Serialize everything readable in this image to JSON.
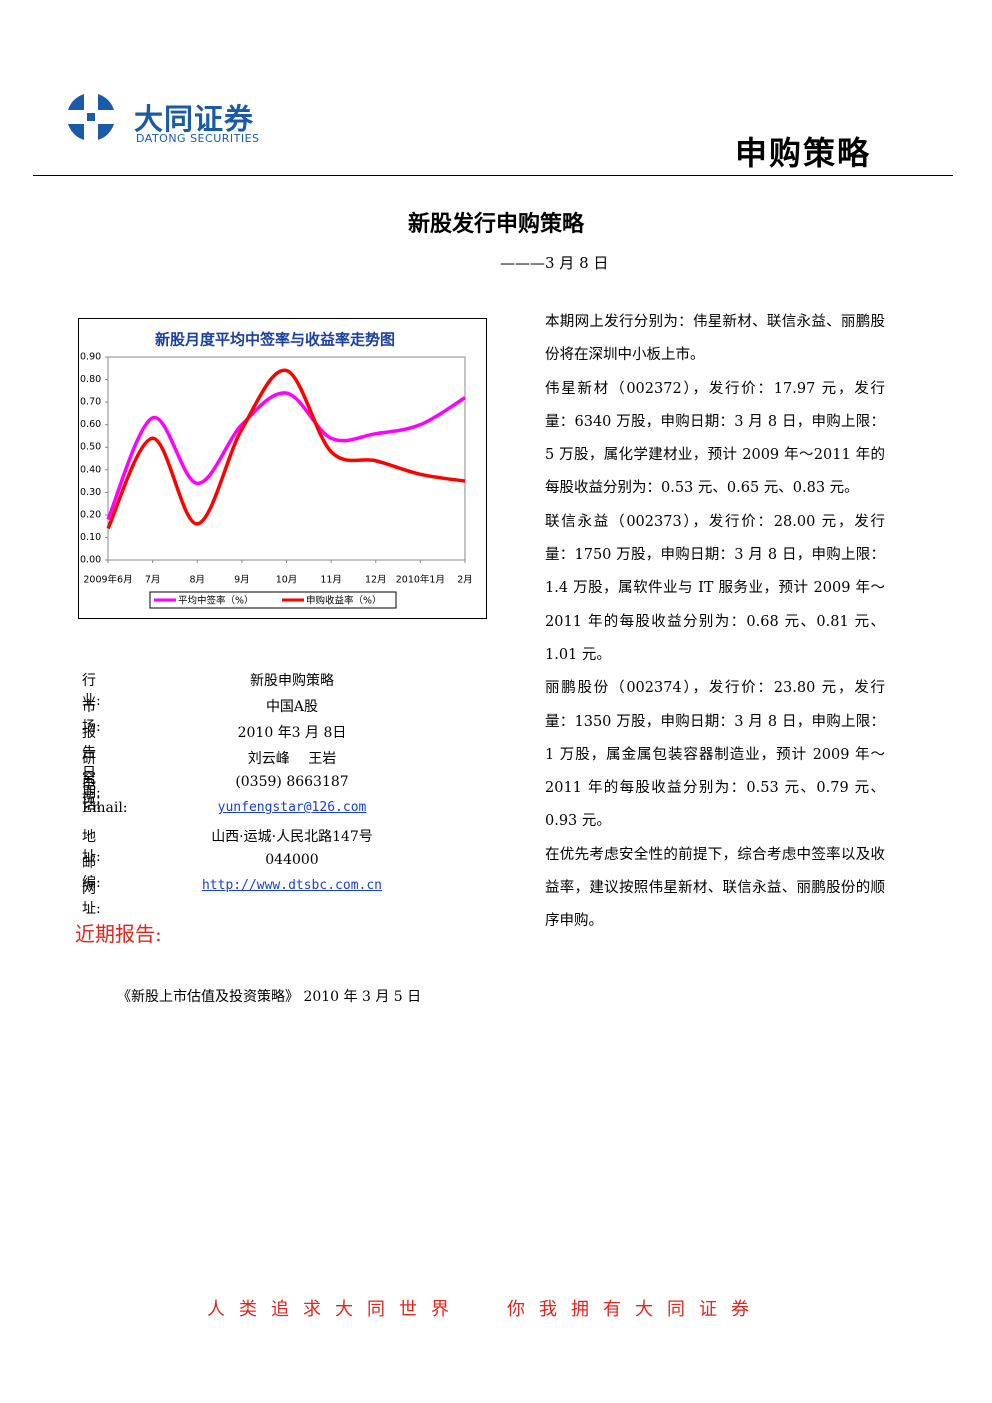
{
  "header": {
    "brand": "大同证券",
    "brand_en": "DATONG SECURITIES",
    "section": "申购策略"
  },
  "title": "新股发行申购策略",
  "date": "———3 月 8 日",
  "chart_data": {
    "type": "line",
    "title": "新股月度平均中签率与收益率走势图",
    "categories": [
      "2009年6月",
      "7月",
      "8月",
      "9月",
      "10月",
      "11月",
      "12月",
      "2010年1月",
      "2月"
    ],
    "series": [
      {
        "name": "平均中签率（%）",
        "color": "#ff00ff",
        "values": [
          0.18,
          0.63,
          0.34,
          0.6,
          0.74,
          0.54,
          0.56,
          0.6,
          0.72
        ]
      },
      {
        "name": "申购收益率（%）",
        "color": "#ff0000",
        "values": [
          0.14,
          0.54,
          0.16,
          0.58,
          0.84,
          0.48,
          0.44,
          0.38,
          0.35
        ]
      }
    ],
    "ylim": [
      0,
      0.9
    ],
    "yticks": [
      {
        "value": 0,
        "label": "0.00"
      },
      {
        "value": 0.1,
        "label": "0.10"
      },
      {
        "value": 0.2,
        "label": "0.20"
      },
      {
        "value": 0.3,
        "label": "0.30"
      },
      {
        "value": 0.4,
        "label": "0.40"
      },
      {
        "value": 0.5,
        "label": "0.50"
      },
      {
        "value": 0.6,
        "label": "0.60"
      },
      {
        "value": 0.7,
        "label": "0.70"
      },
      {
        "value": 0.8,
        "label": "0.80"
      },
      {
        "value": 0.9,
        "label": "0.90"
      }
    ],
    "grid": false,
    "legend": "bottom"
  },
  "info": [
    [
      "行业:",
      "新股申购策略"
    ],
    [
      "市场:",
      "中国A股"
    ],
    [
      "报告日期:",
      "2010 年3 月 8日"
    ],
    [
      "研究员:",
      "刘云峰　 王岩"
    ],
    [
      "电话:",
      "(0359) 8663187"
    ],
    [
      "Email:",
      "yunfengstar@126.com"
    ],
    [
      "地 址:",
      "山西·运城·人民北路147号"
    ],
    [
      "邮编:",
      "044000"
    ],
    [
      "网址:",
      "http://www.dtsbc.com.cn"
    ]
  ],
  "recent_reports": {
    "heading": "近期报告:",
    "items": [
      "《新股上市估值及投资策略》 2010 年 3 月 5 日"
    ]
  },
  "body": [
    "本期网上发行分别为：伟星新材、联信永益、丽鹏股份将在深圳中小板上市。",
    "伟星新材（002372），发行价：17.97 元，发行量：6340 万股，申购日期：3 月 8 日，申购上限：5 万股，属化学建材业，预计 2009 年～2011 年的每股收益分别为：0.53 元、0.65 元、0.83 元。",
    "联信永益（002373），发行价：28.00 元，发行量：1750 万股，申购日期：3 月 8 日，申购上限：1.4 万股，属软件业与 IT 服务业，预计 2009 年～2011 年的每股收益分别为：0.68 元、0.81 元、1.01 元。",
    "丽鹏股份（002374），发行价：23.80 元，发行量：1350 万股，申购日期：3 月 8 日，申购上限：1 万股，属金属包装容器制造业，预计 2009 年～2011 年的每股收益分别为：0.53 元、0.79 元、0.93 元。",
    "在优先考虑安全性的前提下，综合考虑中签率以及收益率，建议按照伟星新材、联信永益、丽鹏股份的顺序申购。"
  ],
  "footer": [
    "人类追求大同世界",
    "你我拥有大同证券"
  ]
}
